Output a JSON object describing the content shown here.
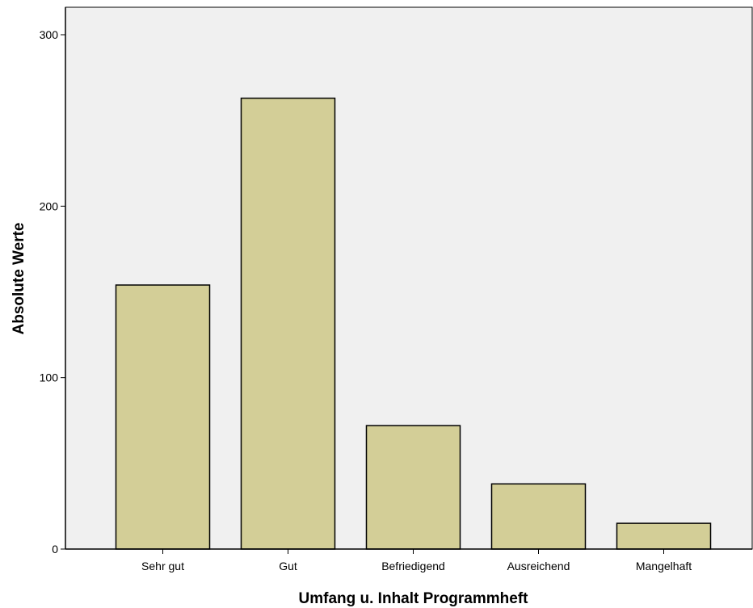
{
  "chart_data": {
    "type": "bar",
    "categories": [
      "Sehr gut",
      "Gut",
      "Befriedigend",
      "Ausreichend",
      "Mangelhaft"
    ],
    "values": [
      154,
      263,
      72,
      38,
      15
    ],
    "title": "",
    "xlabel": "Umfang u. Inhalt Programmheft",
    "ylabel": "Absolute Werte",
    "ylim": [
      0,
      300
    ],
    "yticks": [
      0,
      100,
      200,
      300
    ],
    "grid": false,
    "legend": "none",
    "colors": {
      "plot_background": "#f0f0f0",
      "bar_fill": "#d3ce97",
      "bar_stroke": "#000000",
      "axis": "#000000"
    }
  }
}
